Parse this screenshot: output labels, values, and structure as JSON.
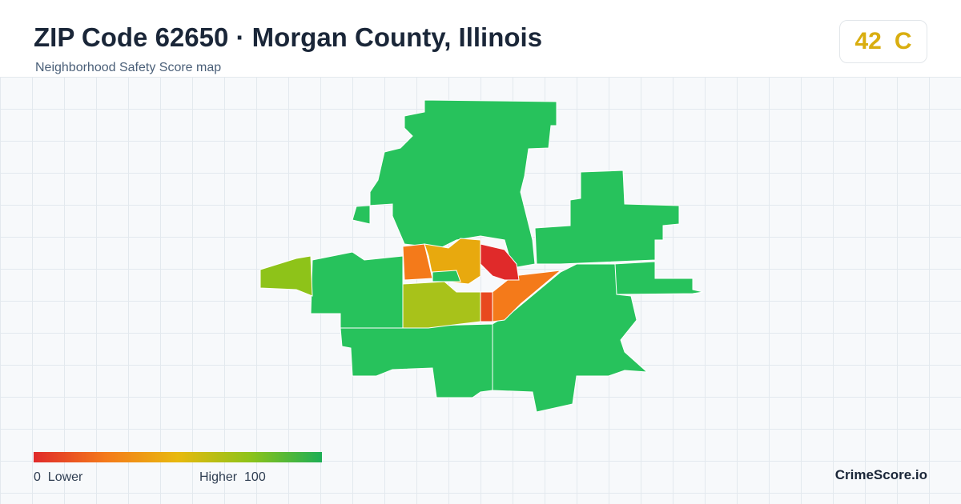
{
  "header": {
    "title": "ZIP Code 62650 · Morgan County, Illinois",
    "subtitle": "Neighborhood Safety Score map"
  },
  "score": {
    "value": "42",
    "grade": "C"
  },
  "legend": {
    "min": "0",
    "min_label": "Lower",
    "max_label": "Higher",
    "max": "100"
  },
  "brand": "CrimeScore.io"
}
